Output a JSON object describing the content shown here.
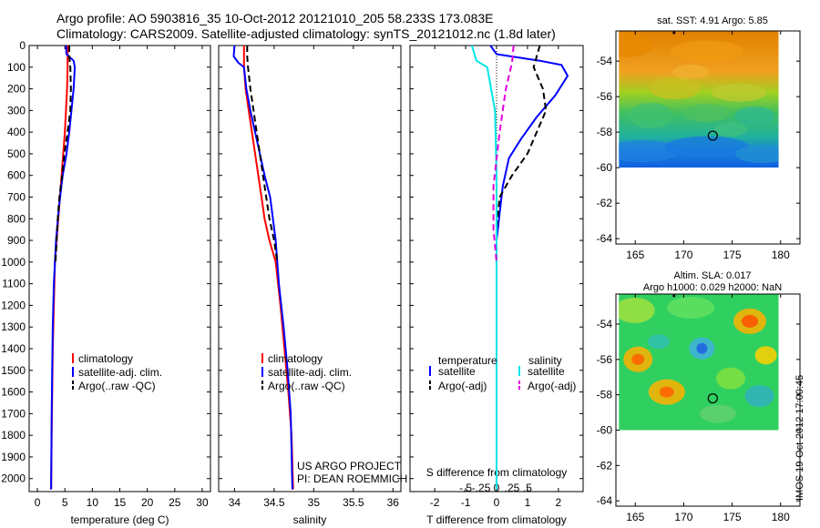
{
  "header": {
    "line1": "Argo profile: AO 5903816_35 10-Oct-2012 20121010_205 58.233S 173.083E",
    "line2": "Climatology: CARS2009. Satellite-adjusted climatology: synTS_20121012.nc (1.8d later)"
  },
  "stamp": "IMOS 19-Oct-2012 17:00:45",
  "colors": {
    "climatology": "#ff0000",
    "satellite": "#0000ff",
    "argo": "#000000",
    "sal_satellite": "#00e5e5",
    "sal_argo": "#e000e0"
  },
  "depth_axis": {
    "ticks": [
      0,
      100,
      200,
      300,
      400,
      500,
      600,
      700,
      800,
      900,
      1000,
      1100,
      1200,
      1300,
      1400,
      1500,
      1600,
      1700,
      1800,
      1900,
      2000
    ],
    "range": [
      0,
      2060
    ],
    "direction": "reversed"
  },
  "chart_data": [
    {
      "type": "line",
      "name": "temperature-profile",
      "xlabel": "temperature (deg C)",
      "xlim": [
        -1.5,
        31.5
      ],
      "xticks": [
        0,
        5,
        10,
        15,
        20,
        25,
        30
      ],
      "yticks": [
        0,
        100,
        200,
        300,
        400,
        500,
        600,
        700,
        800,
        900,
        1000,
        1100,
        1200,
        1300,
        1400,
        1500,
        1600,
        1700,
        1800,
        1900,
        2000
      ],
      "legend": [
        "climatology",
        "satellite-adj. clim.",
        "Argo(..raw -QC)"
      ],
      "series": [
        {
          "name": "climatology",
          "style": "solid",
          "color": "#ff0000",
          "x": [
            5.5,
            5.5,
            5.4,
            5.2,
            5.0,
            4.7,
            4.4,
            4.1,
            3.8,
            3.5,
            3.2,
            3.0,
            2.8,
            2.7,
            2.6,
            2.5
          ],
          "y": [
            0,
            100,
            200,
            300,
            400,
            500,
            600,
            700,
            800,
            900,
            1000,
            1200,
            1400,
            1600,
            1800,
            2050
          ]
        },
        {
          "name": "satellite-adj. clim.",
          "style": "solid",
          "color": "#0000ff",
          "x": [
            5.2,
            5.3,
            6.6,
            6.8,
            6.6,
            6.2,
            5.8,
            5.3,
            4.6,
            3.9,
            3.4,
            3.0,
            2.8,
            2.7,
            2.6,
            2.5
          ],
          "y": [
            0,
            40,
            70,
            100,
            200,
            300,
            400,
            500,
            600,
            750,
            900,
            1100,
            1300,
            1500,
            1700,
            2050
          ]
        },
        {
          "name": "Argo(..raw -QC)",
          "style": "dashed",
          "color": "#000000",
          "x": [
            5.8,
            5.8,
            6.0,
            6.1,
            6.0,
            5.5,
            4.9,
            4.5,
            4.0,
            3.7,
            3.5,
            3.3
          ],
          "y": [
            0,
            50,
            100,
            200,
            300,
            400,
            500,
            600,
            700,
            800,
            900,
            1000
          ]
        }
      ]
    },
    {
      "type": "line",
      "name": "salinity-profile",
      "xlabel": "salinity",
      "xlim": [
        33.8,
        36.1
      ],
      "xticks": [
        34,
        34.5,
        35,
        35.5,
        36
      ],
      "yticks": [
        0,
        100,
        200,
        300,
        400,
        500,
        600,
        700,
        800,
        900,
        1000,
        1100,
        1200,
        1300,
        1400,
        1500,
        1600,
        1700,
        1800,
        1900,
        2000
      ],
      "legend": [
        "climatology",
        "satellite-adj. clim.",
        "Argo(..raw -QC)"
      ],
      "series": [
        {
          "name": "climatology",
          "style": "solid",
          "color": "#ff0000",
          "x": [
            34.12,
            34.12,
            34.14,
            34.18,
            34.22,
            34.26,
            34.3,
            34.34,
            34.38,
            34.44,
            34.52,
            34.58,
            34.63,
            34.68,
            34.72,
            34.74
          ],
          "y": [
            0,
            100,
            200,
            300,
            400,
            500,
            600,
            700,
            800,
            900,
            1000,
            1200,
            1400,
            1600,
            1800,
            2050
          ]
        },
        {
          "name": "satellite-adj. clim.",
          "style": "solid",
          "color": "#0000ff",
          "x": [
            34.0,
            33.99,
            34.05,
            34.12,
            34.15,
            34.2,
            34.26,
            34.32,
            34.38,
            34.45,
            34.52,
            34.56,
            34.62,
            34.67,
            34.71,
            34.73
          ],
          "y": [
            0,
            50,
            80,
            100,
            200,
            300,
            400,
            500,
            600,
            700,
            900,
            1100,
            1300,
            1500,
            1700,
            2050
          ]
        },
        {
          "name": "Argo(..raw -QC)",
          "style": "dashed",
          "color": "#000000",
          "x": [
            34.16,
            34.16,
            34.17,
            34.2,
            34.24,
            34.28,
            34.32,
            34.36,
            34.4,
            34.44,
            34.5,
            34.54
          ],
          "y": [
            0,
            50,
            100,
            200,
            300,
            400,
            500,
            600,
            700,
            800,
            900,
            1000
          ]
        }
      ]
    },
    {
      "type": "line",
      "name": "difference-profile",
      "xlabel": "T difference from climatology",
      "xlabel_top": "S difference from climatology",
      "xlim": [
        -2.8,
        2.8
      ],
      "xticks": [
        -2,
        -1,
        0,
        1,
        2
      ],
      "xticks_top": [
        -0.5,
        -0.25,
        0,
        0.25,
        0.5
      ],
      "yticks": [
        0,
        100,
        200,
        300,
        400,
        500,
        600,
        700,
        800,
        900,
        1000,
        1100,
        1200,
        1300,
        1400,
        1500,
        1600,
        1700,
        1800,
        1900,
        2000
      ],
      "legend_temperature_title": "temperature",
      "legend_salinity_title": "salinity",
      "legend_temperature": [
        "satellite",
        "Argo(-adj)"
      ],
      "legend_salinity": [
        "satellite",
        "Argo(-adj)"
      ],
      "series": [
        {
          "name": "satellite",
          "group": "temperature",
          "style": "solid",
          "color": "#0000ff",
          "x": [
            -0.2,
            0.0,
            1.4,
            2.1,
            2.3,
            1.9,
            1.3,
            0.8,
            0.4,
            0.2,
            0.0,
            0.0,
            0.0
          ],
          "y": [
            0,
            40,
            70,
            90,
            140,
            230,
            330,
            430,
            520,
            650,
            900,
            1400,
            2050
          ]
        },
        {
          "name": "Argo(-adj)",
          "group": "temperature",
          "style": "dashed",
          "color": "#000000",
          "x": [
            1.4,
            1.3,
            1.2,
            1.5,
            1.6,
            1.3,
            1.0,
            0.5,
            0.1,
            0.0,
            0.0
          ],
          "y": [
            0,
            50,
            100,
            200,
            300,
            400,
            500,
            600,
            700,
            850,
            1000
          ]
        },
        {
          "name": "satellite",
          "group": "salinity",
          "style": "solid",
          "color": "#00e5e5",
          "x": [
            -0.8,
            -0.65,
            -0.3,
            -0.05,
            0.0,
            0.0,
            0.0,
            0.0
          ],
          "y": [
            0,
            70,
            100,
            300,
            600,
            1000,
            1400,
            2050
          ]
        },
        {
          "name": "Argo(-adj)",
          "group": "salinity",
          "style": "dashed",
          "color": "#e000e0",
          "x": [
            0.55,
            0.5,
            0.3,
            0.1,
            -0.1,
            -0.1,
            0.0
          ],
          "y": [
            0,
            80,
            200,
            400,
            650,
            850,
            1000
          ]
        }
      ]
    },
    {
      "type": "heatmap",
      "name": "sst-map",
      "title": "sat. SST: 4.91 Argo: 5.85",
      "xticks": [
        165,
        170,
        175,
        180
      ],
      "yticks": [
        -54,
        -56,
        -58,
        -60,
        -62,
        -64
      ],
      "xlim": [
        163,
        182
      ],
      "ylim": [
        -64.3,
        -52.3
      ],
      "data_extent": {
        "lon": [
          163.3,
          179.8
        ],
        "lat": [
          -60.0,
          -52.3
        ]
      },
      "colormap": "jet",
      "marker": {
        "lon": 173.0,
        "lat": -58.2
      },
      "dot": {
        "lon": 169.0,
        "lat": -52.4
      }
    },
    {
      "type": "heatmap",
      "name": "sla-map",
      "title": "Altim. SLA: 0.017",
      "subtitle": "Argo h1000: 0.029 h2000: NaN",
      "xticks": [
        165,
        170,
        175,
        180
      ],
      "yticks": [
        -54,
        -56,
        -58,
        -60,
        -62,
        -64
      ],
      "xlim": [
        163,
        182
      ],
      "ylim": [
        -64.3,
        -52.3
      ],
      "data_extent": {
        "lon": [
          163.3,
          179.8
        ],
        "lat": [
          -60.0,
          -52.3
        ]
      },
      "colormap": "jet",
      "marker": {
        "lon": 173.0,
        "lat": -58.2
      },
      "dot": {
        "lon": 169.0,
        "lat": -52.4
      }
    }
  ],
  "annotation": {
    "project_line1": "US ARGO PROJECT",
    "project_line2": "PI: DEAN ROEMMICH"
  }
}
